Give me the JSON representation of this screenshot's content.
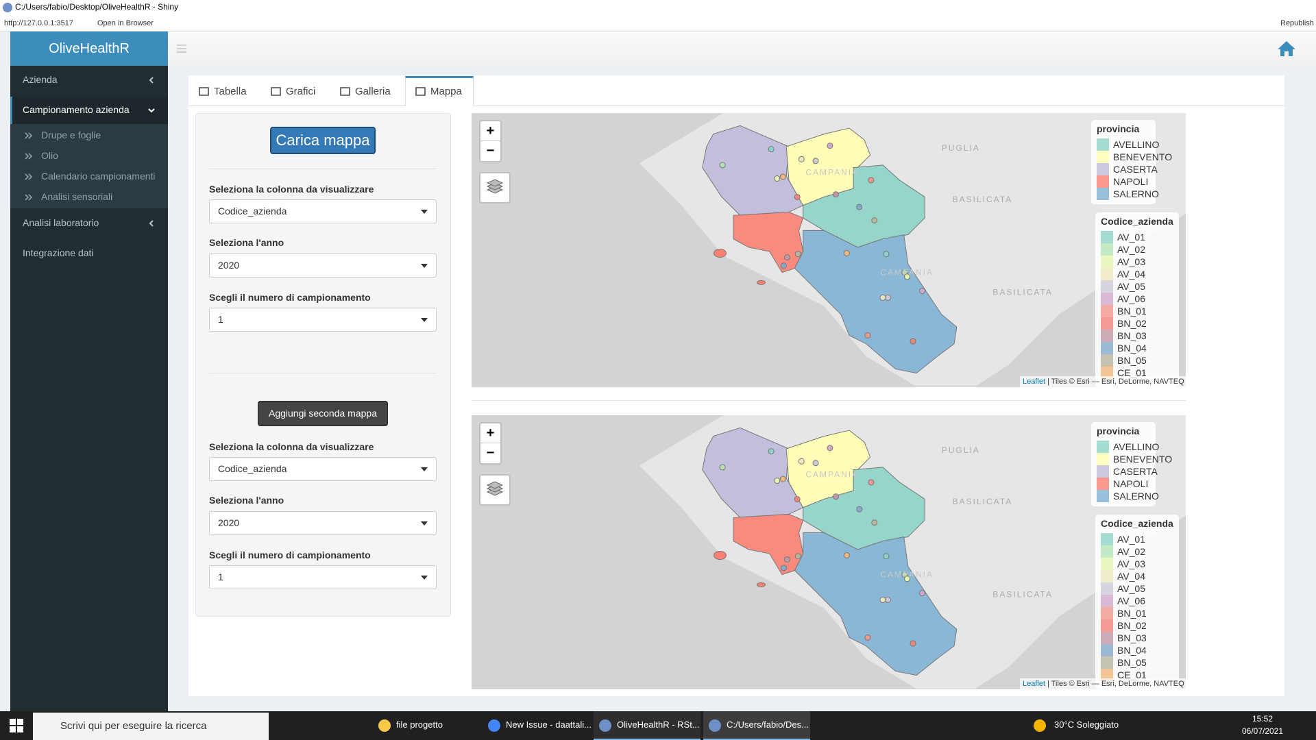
{
  "window": {
    "title": "C:/Users/fabio/Desktop/OliveHealthR - Shiny",
    "url": "http://127.0.0.1:3517",
    "open_in_browser": "Open in Browser",
    "republish": "Republish"
  },
  "sidebar": {
    "brand": "OliveHealthR",
    "menu": [
      {
        "label": "Azienda"
      },
      {
        "label": "Campionamento azienda",
        "items": [
          "Drupe e foglie",
          "Olio",
          "Calendario campionamenti",
          "Analisi sensoriali"
        ]
      },
      {
        "label": "Analisi laboratorio"
      },
      {
        "label": "Integrazione dati"
      }
    ]
  },
  "tabs": [
    "Tabella",
    "Grafici",
    "Galleria",
    "Mappa"
  ],
  "controls": {
    "load_button": "Carica mappa",
    "panel1": [
      {
        "label": "Seleziona la colonna da visualizzare",
        "value": "Codice_azienda"
      },
      {
        "label": "Seleziona l'anno",
        "value": "2020"
      },
      {
        "label": "Scegli il numero di campionamento",
        "value": "1"
      }
    ],
    "add_button": "Aggiungi seconda mappa",
    "panel2": [
      {
        "label": "Seleziona la colonna da visualizzare",
        "value": "Codice_azienda"
      },
      {
        "label": "Seleziona l'anno",
        "value": "2020"
      },
      {
        "label": "Scegli il numero di campionamento",
        "value": "1"
      }
    ]
  },
  "maps": [
    {
      "zoom_in": "+",
      "zoom_out": "−",
      "place_labels": [
        "PUGLIA",
        "BASILICATA",
        "BASILICATA",
        "CAMPANIA",
        "CAMPANIA"
      ],
      "legend_provincia": {
        "title": "provincia",
        "items": [
          {
            "label": "AVELLINO",
            "color": "#8dd3c7"
          },
          {
            "label": "BENEVENTO",
            "color": "#ffffb3"
          },
          {
            "label": "CASERTA",
            "color": "#bebada"
          },
          {
            "label": "NAPOLI",
            "color": "#fb8072"
          },
          {
            "label": "SALERNO",
            "color": "#80b1d3"
          }
        ]
      },
      "legend_codice": {
        "title": "Codice_azienda",
        "items": [
          {
            "label": "AV_01",
            "color": "#8dd3c7"
          },
          {
            "label": "AV_02",
            "color": "#b5e3b6"
          },
          {
            "label": "AV_03",
            "color": "#e6f5b0"
          },
          {
            "label": "AV_04",
            "color": "#ece8bf"
          },
          {
            "label": "AV_05",
            "color": "#cfcbd6"
          },
          {
            "label": "AV_06",
            "color": "#d2a9cc"
          },
          {
            "label": "BN_01",
            "color": "#f1998f"
          },
          {
            "label": "BN_02",
            "color": "#f2857a"
          },
          {
            "label": "BN_03",
            "color": "#bf98a8"
          },
          {
            "label": "BN_04",
            "color": "#85a9cc"
          },
          {
            "label": "BN_05",
            "color": "#b8b59e"
          },
          {
            "label": "CE_01",
            "color": "#f0b87a"
          }
        ]
      },
      "attribution_link": "Leaflet",
      "attribution": "| Tiles © Esri — Esri, DeLorme, NAVTEQ"
    },
    {
      "zoom_in": "+",
      "zoom_out": "−",
      "place_labels": [
        "PUGLIA",
        "BASILICATA",
        "BASILICATA",
        "CAMPANIA",
        "CAMPANIA"
      ],
      "legend_provincia": {
        "title": "provincia",
        "items": [
          {
            "label": "AVELLINO",
            "color": "#8dd3c7"
          },
          {
            "label": "BENEVENTO",
            "color": "#ffffb3"
          },
          {
            "label": "CASERTA",
            "color": "#bebada"
          },
          {
            "label": "NAPOLI",
            "color": "#fb8072"
          },
          {
            "label": "SALERNO",
            "color": "#80b1d3"
          }
        ]
      },
      "legend_codice": {
        "title": "Codice_azienda",
        "items": [
          {
            "label": "AV_01",
            "color": "#8dd3c7"
          },
          {
            "label": "AV_02",
            "color": "#b5e3b6"
          },
          {
            "label": "AV_03",
            "color": "#e6f5b0"
          },
          {
            "label": "AV_04",
            "color": "#ece8bf"
          },
          {
            "label": "AV_05",
            "color": "#cfcbd6"
          },
          {
            "label": "AV_06",
            "color": "#d2a9cc"
          },
          {
            "label": "BN_01",
            "color": "#f1998f"
          },
          {
            "label": "BN_02",
            "color": "#f2857a"
          },
          {
            "label": "BN_03",
            "color": "#bf98a8"
          },
          {
            "label": "BN_04",
            "color": "#85a9cc"
          },
          {
            "label": "BN_05",
            "color": "#b8b59e"
          },
          {
            "label": "CE_01",
            "color": "#f0b87a"
          }
        ]
      },
      "attribution_link": "Leaflet",
      "attribution": "| Tiles © Esri — Esri, DeLorme, NAVTEQ"
    }
  ],
  "taskbar": {
    "search": "Scrivi qui per eseguire la ricerca",
    "apps": [
      "file progetto",
      "New Issue - daattali...",
      "OliveHealthR - RSt...",
      "C:/Users/fabio/Des..."
    ],
    "weather": "30°C  Soleggiato",
    "time": "15:52",
    "date": "06/07/2021"
  }
}
